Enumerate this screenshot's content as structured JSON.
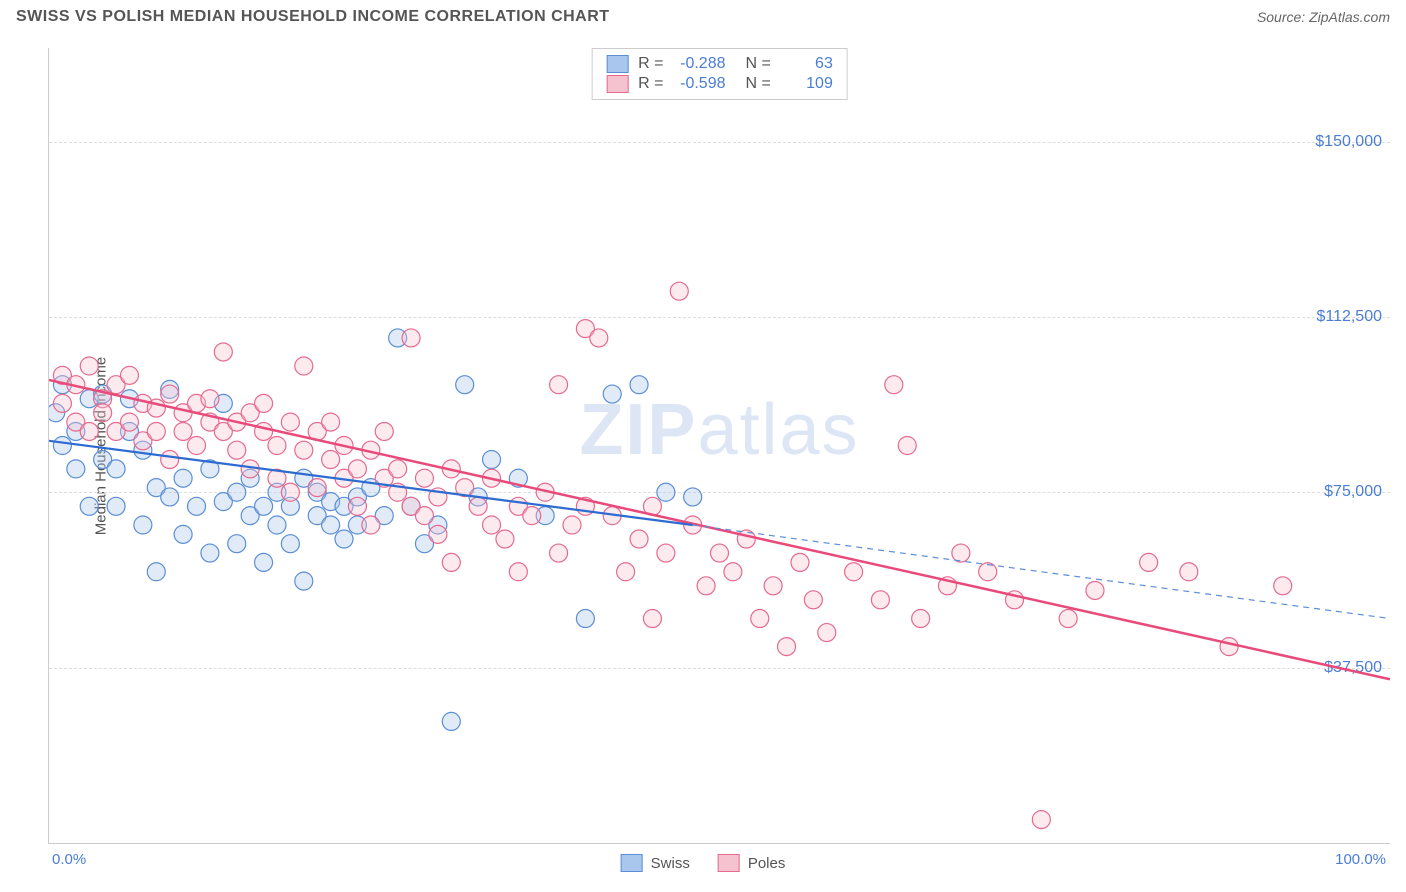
{
  "title": "SWISS VS POLISH MEDIAN HOUSEHOLD INCOME CORRELATION CHART",
  "source": "Source: ZipAtlas.com",
  "y_axis_label": "Median Household Income",
  "watermark_a": "ZIP",
  "watermark_b": "atlas",
  "chart": {
    "type": "scatter",
    "xlim": [
      0,
      100
    ],
    "ylim": [
      0,
      170000
    ],
    "background_color": "#ffffff",
    "grid_color": "#dddddd",
    "y_ticks": [
      {
        "value": 37500,
        "label": "$37,500"
      },
      {
        "value": 75000,
        "label": "$75,000"
      },
      {
        "value": 112500,
        "label": "$112,500"
      },
      {
        "value": 150000,
        "label": "$150,000"
      }
    ],
    "x_ticks": [
      {
        "value": 0,
        "label": "0.0%"
      },
      {
        "value": 100,
        "label": "100.0%"
      }
    ],
    "marker_radius": 9,
    "marker_fill_opacity": 0.35,
    "marker_stroke_width": 1.2,
    "series": [
      {
        "name": "Swiss",
        "color_fill": "#a9c6ec",
        "color_stroke": "#5b8ed6",
        "R": "-0.288",
        "N": "63",
        "trend": {
          "x1": 0,
          "y1": 86000,
          "x2": 48,
          "y2": 68000,
          "solid_color": "#2d6bd1",
          "width": 2.2
        },
        "trend_ext": {
          "x1": 48,
          "y1": 68000,
          "x2": 100,
          "y2": 48000,
          "dash": "6,5",
          "color": "#5b8ed6",
          "width": 1.2
        },
        "points": [
          [
            1,
            98000
          ],
          [
            1,
            85000
          ],
          [
            0.5,
            92000
          ],
          [
            2,
            88000
          ],
          [
            2,
            80000
          ],
          [
            3,
            72000
          ],
          [
            3,
            95000
          ],
          [
            4,
            82000
          ],
          [
            4,
            96000
          ],
          [
            5,
            80000
          ],
          [
            5,
            72000
          ],
          [
            6,
            88000
          ],
          [
            6,
            95000
          ],
          [
            7,
            84000
          ],
          [
            7,
            68000
          ],
          [
            8,
            76000
          ],
          [
            8,
            58000
          ],
          [
            9,
            97000
          ],
          [
            9,
            74000
          ],
          [
            10,
            78000
          ],
          [
            10,
            66000
          ],
          [
            11,
            72000
          ],
          [
            12,
            80000
          ],
          [
            12,
            62000
          ],
          [
            13,
            73000
          ],
          [
            13,
            94000
          ],
          [
            14,
            75000
          ],
          [
            14,
            64000
          ],
          [
            15,
            78000
          ],
          [
            15,
            70000
          ],
          [
            16,
            72000
          ],
          [
            16,
            60000
          ],
          [
            17,
            75000
          ],
          [
            17,
            68000
          ],
          [
            18,
            72000
          ],
          [
            18,
            64000
          ],
          [
            19,
            78000
          ],
          [
            19,
            56000
          ],
          [
            20,
            70000
          ],
          [
            20,
            75000
          ],
          [
            21,
            68000
          ],
          [
            21,
            73000
          ],
          [
            22,
            72000
          ],
          [
            22,
            65000
          ],
          [
            23,
            74000
          ],
          [
            23,
            68000
          ],
          [
            24,
            76000
          ],
          [
            25,
            70000
          ],
          [
            26,
            108000
          ],
          [
            27,
            72000
          ],
          [
            28,
            64000
          ],
          [
            29,
            68000
          ],
          [
            30,
            26000
          ],
          [
            31,
            98000
          ],
          [
            32,
            74000
          ],
          [
            33,
            82000
          ],
          [
            35,
            78000
          ],
          [
            37,
            70000
          ],
          [
            40,
            48000
          ],
          [
            42,
            96000
          ],
          [
            44,
            98000
          ],
          [
            46,
            75000
          ],
          [
            48,
            74000
          ]
        ]
      },
      {
        "name": "Poles",
        "color_fill": "#f5c3d0",
        "color_stroke": "#e66a8f",
        "R": "-0.598",
        "N": "109",
        "trend": {
          "x1": 0,
          "y1": 99000,
          "x2": 100,
          "y2": 35000,
          "solid_color": "#e84a7a",
          "width": 2.5
        },
        "points": [
          [
            1,
            100000
          ],
          [
            1,
            94000
          ],
          [
            2,
            98000
          ],
          [
            2,
            90000
          ],
          [
            3,
            102000
          ],
          [
            3,
            88000
          ],
          [
            4,
            95000
          ],
          [
            4,
            92000
          ],
          [
            5,
            98000
          ],
          [
            5,
            88000
          ],
          [
            6,
            100000
          ],
          [
            6,
            90000
          ],
          [
            7,
            94000
          ],
          [
            7,
            86000
          ],
          [
            8,
            93000
          ],
          [
            8,
            88000
          ],
          [
            9,
            96000
          ],
          [
            9,
            82000
          ],
          [
            10,
            92000
          ],
          [
            10,
            88000
          ],
          [
            11,
            94000
          ],
          [
            11,
            85000
          ],
          [
            12,
            90000
          ],
          [
            12,
            95000
          ],
          [
            13,
            88000
          ],
          [
            13,
            105000
          ],
          [
            14,
            90000
          ],
          [
            14,
            84000
          ],
          [
            15,
            92000
          ],
          [
            15,
            80000
          ],
          [
            16,
            88000
          ],
          [
            16,
            94000
          ],
          [
            17,
            85000
          ],
          [
            17,
            78000
          ],
          [
            18,
            90000
          ],
          [
            18,
            75000
          ],
          [
            19,
            102000
          ],
          [
            19,
            84000
          ],
          [
            20,
            88000
          ],
          [
            20,
            76000
          ],
          [
            21,
            82000
          ],
          [
            21,
            90000
          ],
          [
            22,
            78000
          ],
          [
            22,
            85000
          ],
          [
            23,
            80000
          ],
          [
            23,
            72000
          ],
          [
            24,
            84000
          ],
          [
            24,
            68000
          ],
          [
            25,
            78000
          ],
          [
            25,
            88000
          ],
          [
            26,
            75000
          ],
          [
            26,
            80000
          ],
          [
            27,
            72000
          ],
          [
            27,
            108000
          ],
          [
            28,
            78000
          ],
          [
            28,
            70000
          ],
          [
            29,
            74000
          ],
          [
            29,
            66000
          ],
          [
            30,
            80000
          ],
          [
            30,
            60000
          ],
          [
            31,
            76000
          ],
          [
            32,
            72000
          ],
          [
            33,
            68000
          ],
          [
            33,
            78000
          ],
          [
            34,
            65000
          ],
          [
            35,
            72000
          ],
          [
            35,
            58000
          ],
          [
            36,
            70000
          ],
          [
            37,
            75000
          ],
          [
            38,
            62000
          ],
          [
            38,
            98000
          ],
          [
            39,
            68000
          ],
          [
            40,
            72000
          ],
          [
            40,
            110000
          ],
          [
            41,
            108000
          ],
          [
            42,
            70000
          ],
          [
            43,
            58000
          ],
          [
            44,
            65000
          ],
          [
            45,
            72000
          ],
          [
            45,
            48000
          ],
          [
            46,
            62000
          ],
          [
            47,
            118000
          ],
          [
            48,
            68000
          ],
          [
            49,
            55000
          ],
          [
            50,
            62000
          ],
          [
            51,
            58000
          ],
          [
            52,
            65000
          ],
          [
            53,
            48000
          ],
          [
            54,
            55000
          ],
          [
            55,
            42000
          ],
          [
            56,
            60000
          ],
          [
            57,
            52000
          ],
          [
            58,
            45000
          ],
          [
            60,
            58000
          ],
          [
            62,
            52000
          ],
          [
            63,
            98000
          ],
          [
            64,
            85000
          ],
          [
            65,
            48000
          ],
          [
            67,
            55000
          ],
          [
            68,
            62000
          ],
          [
            70,
            58000
          ],
          [
            72,
            52000
          ],
          [
            74,
            5000
          ],
          [
            76,
            48000
          ],
          [
            78,
            54000
          ],
          [
            82,
            60000
          ],
          [
            85,
            58000
          ],
          [
            88,
            42000
          ],
          [
            92,
            55000
          ]
        ]
      }
    ]
  },
  "legend": {
    "swiss_label": "Swiss",
    "poles_label": "Poles"
  },
  "stats_labels": {
    "R": "R =",
    "N": "N ="
  }
}
